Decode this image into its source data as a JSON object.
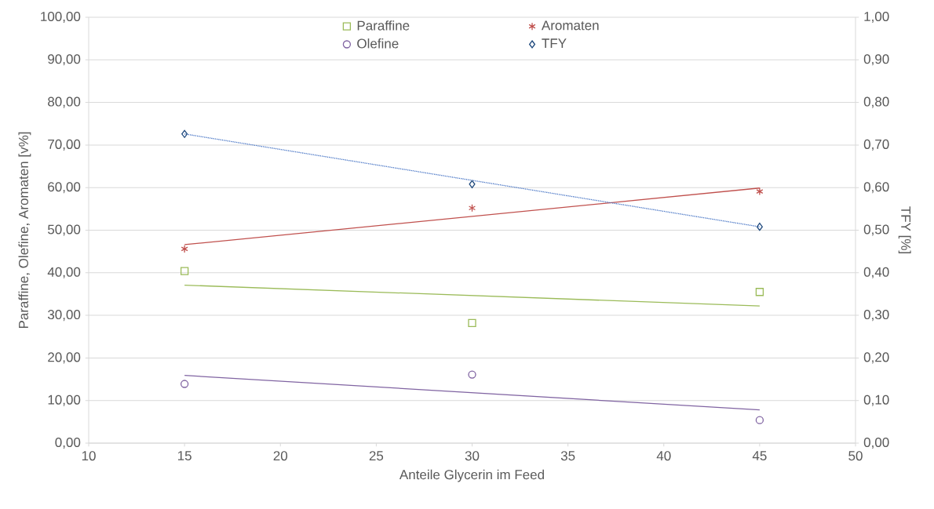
{
  "chart_data": {
    "type": "scatter",
    "xlabel": "Anteile Glycerin im Feed",
    "ylabel": "Paraffine, Olefine, Aromaten [v%]",
    "y2label": "TFY [%]",
    "xlim": [
      10,
      50
    ],
    "xticks": [
      10,
      15,
      20,
      25,
      30,
      35,
      40,
      45,
      50
    ],
    "ylim": [
      0,
      100
    ],
    "yticks": [
      {
        "value": 0,
        "label": "0,00"
      },
      {
        "value": 10,
        "label": "10,00"
      },
      {
        "value": 20,
        "label": "20,00"
      },
      {
        "value": 30,
        "label": "30,00"
      },
      {
        "value": 40,
        "label": "40,00"
      },
      {
        "value": 50,
        "label": "50,00"
      },
      {
        "value": 60,
        "label": "60,00"
      },
      {
        "value": 70,
        "label": "70,00"
      },
      {
        "value": 80,
        "label": "80,00"
      },
      {
        "value": 90,
        "label": "90,00"
      },
      {
        "value": 100,
        "label": "100,00"
      }
    ],
    "y2lim": [
      0,
      1
    ],
    "y2ticks": [
      {
        "value": 0,
        "label": "0,00"
      },
      {
        "value": 0.1,
        "label": "0,10"
      },
      {
        "value": 0.2,
        "label": "0,20"
      },
      {
        "value": 0.3,
        "label": "0,30"
      },
      {
        "value": 0.4,
        "label": "0,40"
      },
      {
        "value": 0.5,
        "label": "0,50"
      },
      {
        "value": 0.6,
        "label": "0,60"
      },
      {
        "value": 0.7,
        "label": "0,70"
      },
      {
        "value": 0.8,
        "label": "0,80"
      },
      {
        "value": 0.9,
        "label": "0,90"
      },
      {
        "value": 1,
        "label": "1,00"
      }
    ],
    "grid": "y",
    "legend": "top",
    "series": [
      {
        "name": "Paraffine",
        "type": "scatter",
        "marker": "square",
        "color": "#9bbb59",
        "x": [
          15,
          30,
          45
        ],
        "values": [
          40.4,
          28.2,
          35.5
        ]
      },
      {
        "name": "Aromaten",
        "type": "scatter",
        "marker": "cross",
        "color": "#c0504d",
        "x": [
          15,
          30,
          45
        ],
        "values": [
          45.6,
          55.2,
          59.1
        ]
      },
      {
        "name": "Olefine",
        "type": "scatter",
        "marker": "circle",
        "color": "#8064a2",
        "x": [
          15,
          30,
          45
        ],
        "values": [
          13.9,
          16.1,
          5.4
        ]
      },
      {
        "name": "TFY",
        "type": "scatter",
        "marker": "diamond",
        "color": "#1f497d",
        "axis": "y2",
        "x": [
          15,
          30,
          45
        ],
        "values": [
          0.726,
          0.608,
          0.508
        ]
      },
      {
        "type": "line",
        "line_style": "solid",
        "color": "#9bbb59",
        "x": [
          15,
          45
        ],
        "values": [
          37.1,
          32.2
        ]
      },
      {
        "type": "line",
        "line_style": "solid",
        "color": "#c0504d",
        "x": [
          15,
          45
        ],
        "values": [
          46.6,
          59.9
        ]
      },
      {
        "type": "line",
        "line_style": "solid",
        "color": "#8064a2",
        "x": [
          15,
          45
        ],
        "values": [
          15.9,
          7.8
        ]
      },
      {
        "type": "line",
        "line_style": "dotted",
        "color": "#4472c4",
        "axis": "y2",
        "x": [
          15,
          45
        ],
        "values": [
          0.726,
          0.508
        ]
      }
    ]
  }
}
